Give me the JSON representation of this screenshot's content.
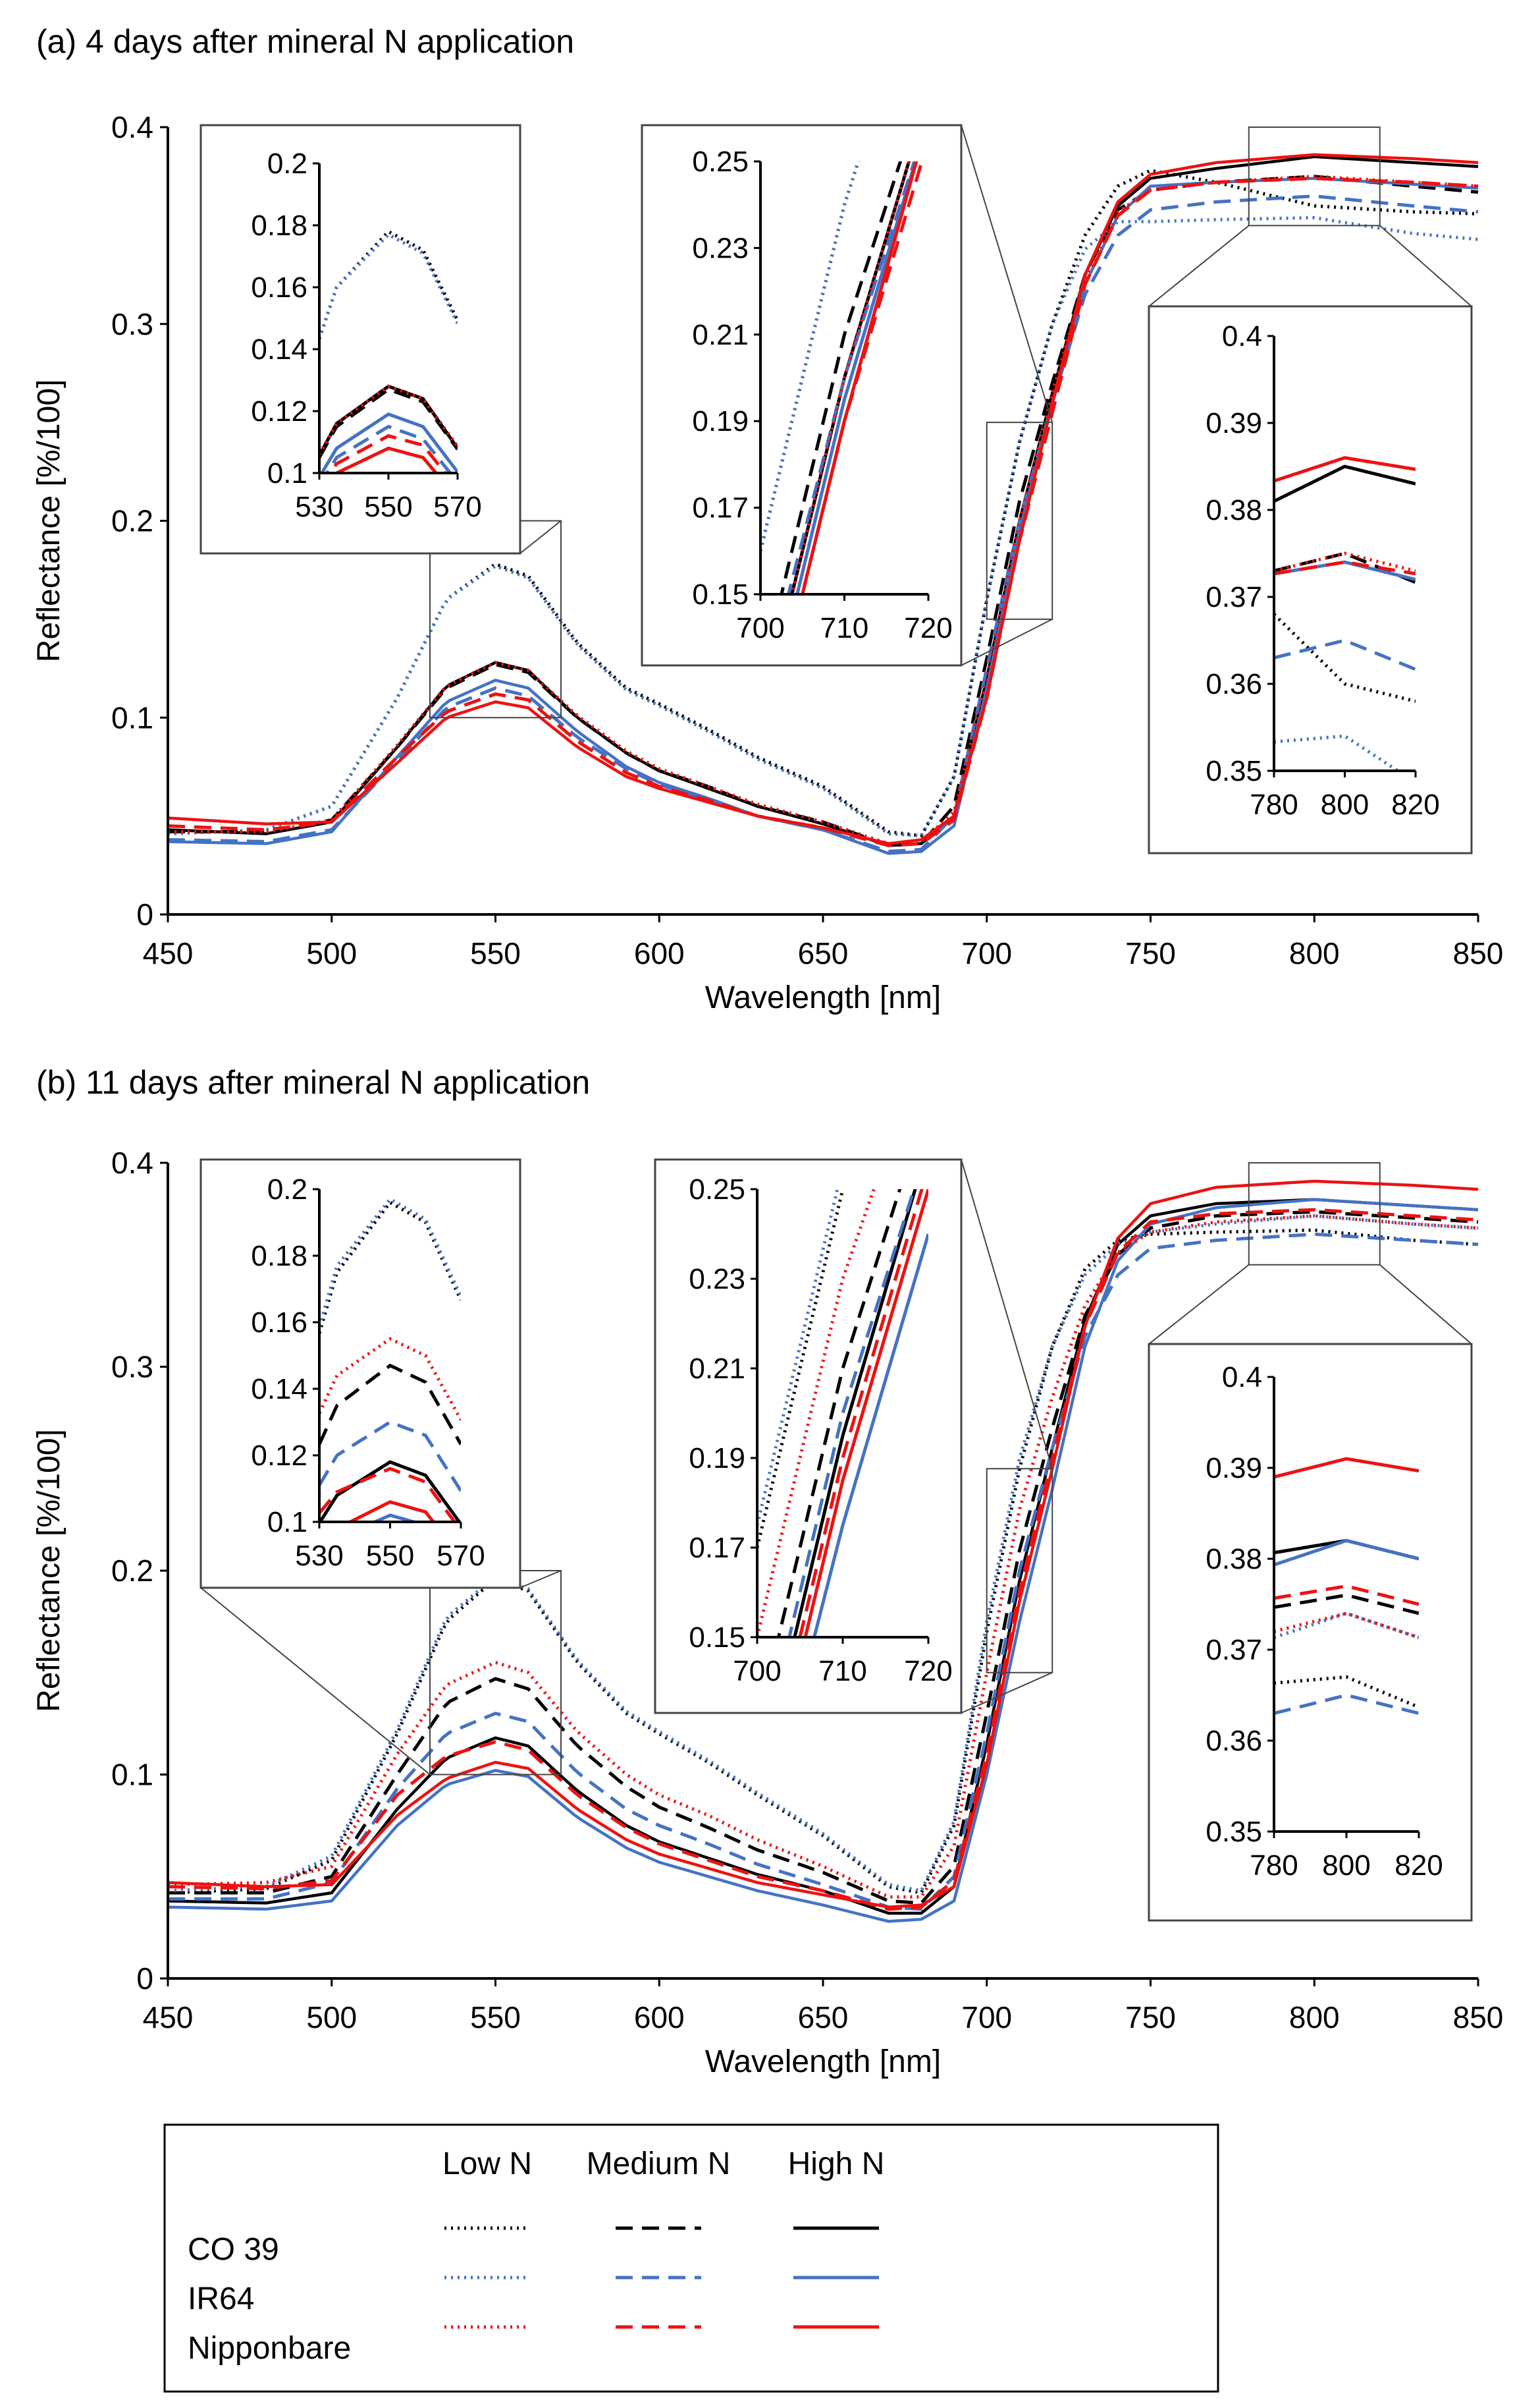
{
  "figure_labels": {
    "panel_a": "(a)   4 days after mineral N application",
    "panel_b": "(b)   11 days after mineral N application"
  },
  "colors": {
    "CO 39": "#000000",
    "IR64": "#4472C4",
    "Nipponbare": "#EE1111"
  },
  "legend": {
    "headers": [
      "Low N",
      "Medium N",
      "High N"
    ],
    "rows": [
      "CO 39",
      "IR64",
      "Nipponbare"
    ]
  },
  "chart_data": [
    {
      "type": "line",
      "panel": "a",
      "title": "4 days after mineral N application",
      "xlabel": "Wavelength [nm]",
      "ylabel": "Reflectance [%/100]",
      "xlim": [
        450,
        850
      ],
      "ylim": [
        0,
        0.4
      ],
      "xticks": [
        "450",
        "500",
        "550",
        "600",
        "650",
        "700",
        "750",
        "800",
        "850"
      ],
      "yticks": [
        "0",
        "0.1",
        "0.2",
        "0.3",
        "0.4"
      ],
      "x": [
        450,
        480,
        500,
        520,
        535,
        550,
        560,
        575,
        590,
        600,
        615,
        630,
        650,
        670,
        680,
        690,
        700,
        710,
        720,
        730,
        740,
        750,
        770,
        800,
        830,
        850
      ],
      "series": [
        {
          "name": "CO 39 Low N",
          "cultivar": "CO 39",
          "level": "Low N",
          "values": [
            0.041,
            0.043,
            0.055,
            0.11,
            0.16,
            0.178,
            0.172,
            0.138,
            0.115,
            0.107,
            0.094,
            0.08,
            0.065,
            0.042,
            0.04,
            0.07,
            0.16,
            0.24,
            0.3,
            0.345,
            0.37,
            0.378,
            0.372,
            0.36,
            0.357,
            0.356
          ]
        },
        {
          "name": "CO 39 Medium N",
          "cultivar": "CO 39",
          "level": "Medium N",
          "values": [
            0.042,
            0.042,
            0.048,
            0.085,
            0.115,
            0.127,
            0.123,
            0.1,
            0.082,
            0.073,
            0.065,
            0.055,
            0.047,
            0.035,
            0.036,
            0.055,
            0.13,
            0.21,
            0.27,
            0.325,
            0.358,
            0.368,
            0.372,
            0.375,
            0.37,
            0.367
          ]
        },
        {
          "name": "CO 39 High N",
          "cultivar": "CO 39",
          "level": "High N",
          "values": [
            0.043,
            0.041,
            0.047,
            0.085,
            0.116,
            0.128,
            0.124,
            0.1,
            0.082,
            0.073,
            0.064,
            0.055,
            0.046,
            0.035,
            0.036,
            0.05,
            0.12,
            0.2,
            0.265,
            0.325,
            0.36,
            0.374,
            0.379,
            0.385,
            0.382,
            0.38
          ]
        },
        {
          "name": "IR64 Low N",
          "cultivar": "IR64",
          "level": "Low N",
          "values": [
            0.041,
            0.043,
            0.055,
            0.11,
            0.16,
            0.177,
            0.171,
            0.137,
            0.114,
            0.106,
            0.093,
            0.079,
            0.064,
            0.041,
            0.04,
            0.07,
            0.16,
            0.24,
            0.3,
            0.338,
            0.352,
            0.352,
            0.353,
            0.354,
            0.346,
            0.343
          ]
        },
        {
          "name": "IR64 Medium N",
          "cultivar": "IR64",
          "level": "Medium N",
          "values": [
            0.038,
            0.037,
            0.043,
            0.078,
            0.105,
            0.115,
            0.111,
            0.09,
            0.074,
            0.066,
            0.058,
            0.05,
            0.043,
            0.032,
            0.033,
            0.05,
            0.125,
            0.2,
            0.26,
            0.315,
            0.345,
            0.358,
            0.362,
            0.365,
            0.36,
            0.357
          ]
        },
        {
          "name": "IR64 High N",
          "cultivar": "IR64",
          "level": "High N",
          "values": [
            0.037,
            0.036,
            0.042,
            0.08,
            0.108,
            0.119,
            0.115,
            0.093,
            0.075,
            0.067,
            0.059,
            0.05,
            0.043,
            0.031,
            0.032,
            0.045,
            0.115,
            0.195,
            0.26,
            0.32,
            0.355,
            0.37,
            0.372,
            0.374,
            0.371,
            0.369
          ]
        },
        {
          "name": "Nipponbare Low N",
          "cultivar": "Nipponbare",
          "level": "Low N",
          "values": [
            0.042,
            0.042,
            0.048,
            0.086,
            0.116,
            0.128,
            0.124,
            0.101,
            0.083,
            0.074,
            0.065,
            0.056,
            0.047,
            0.036,
            0.037,
            0.052,
            0.12,
            0.2,
            0.265,
            0.323,
            0.357,
            0.368,
            0.372,
            0.375,
            0.372,
            0.37
          ]
        },
        {
          "name": "Nipponbare Medium N",
          "cultivar": "Nipponbare",
          "level": "Medium N",
          "values": [
            0.045,
            0.043,
            0.047,
            0.08,
            0.103,
            0.112,
            0.109,
            0.088,
            0.072,
            0.065,
            0.058,
            0.05,
            0.044,
            0.035,
            0.036,
            0.048,
            0.11,
            0.19,
            0.255,
            0.32,
            0.355,
            0.368,
            0.372,
            0.374,
            0.372,
            0.37
          ]
        },
        {
          "name": "Nipponbare High N",
          "cultivar": "Nipponbare",
          "level": "High N",
          "values": [
            0.049,
            0.046,
            0.047,
            0.077,
            0.1,
            0.108,
            0.105,
            0.085,
            0.07,
            0.064,
            0.057,
            0.05,
            0.044,
            0.036,
            0.038,
            0.05,
            0.11,
            0.19,
            0.26,
            0.325,
            0.362,
            0.376,
            0.382,
            0.386,
            0.384,
            0.382
          ]
        }
      ],
      "insets": [
        {
          "name": "inset-green",
          "xlim": [
            530,
            570
          ],
          "ylim": [
            0.1,
            0.2
          ],
          "xticks": [
            "530",
            "550",
            "570"
          ],
          "yticks": [
            "0.1",
            "0.12",
            "0.14",
            "0.16",
            "0.18",
            "0.2"
          ]
        },
        {
          "name": "inset-rededge",
          "xlim": [
            700,
            720
          ],
          "ylim": [
            0.15,
            0.25
          ],
          "xticks": [
            "700",
            "710",
            "720"
          ],
          "yticks": [
            "0.15",
            "0.17",
            "0.19",
            "0.21",
            "0.23",
            "0.25"
          ]
        },
        {
          "name": "inset-nir",
          "xlim": [
            780,
            820
          ],
          "ylim": [
            0.35,
            0.4
          ],
          "xticks": [
            "780",
            "800",
            "820"
          ],
          "yticks": [
            "0.35",
            "0.36",
            "0.37",
            "0.38",
            "0.39",
            "0.4"
          ]
        }
      ]
    },
    {
      "type": "line",
      "panel": "b",
      "title": "11 days after mineral N application",
      "xlabel": "Wavelength [nm]",
      "ylabel": "Reflectance [%/100]",
      "xlim": [
        450,
        850
      ],
      "ylim": [
        0,
        0.4
      ],
      "xticks": [
        "450",
        "500",
        "550",
        "600",
        "650",
        "700",
        "750",
        "800",
        "850"
      ],
      "yticks": [
        "0",
        "0.1",
        "0.2",
        "0.3",
        "0.4"
      ],
      "x": [
        450,
        480,
        500,
        520,
        535,
        550,
        560,
        575,
        590,
        600,
        615,
        630,
        650,
        670,
        680,
        690,
        700,
        710,
        720,
        730,
        740,
        750,
        770,
        800,
        830,
        850
      ],
      "series": [
        {
          "name": "CO 39 Low N",
          "cultivar": "CO 39",
          "level": "Low N",
          "values": [
            0.042,
            0.044,
            0.058,
            0.12,
            0.175,
            0.196,
            0.19,
            0.155,
            0.13,
            0.12,
            0.106,
            0.09,
            0.07,
            0.045,
            0.042,
            0.075,
            0.17,
            0.25,
            0.31,
            0.348,
            0.362,
            0.365,
            0.366,
            0.367,
            0.362,
            0.36
          ]
        },
        {
          "name": "CO 39 Medium N",
          "cultivar": "CO 39",
          "level": "Medium N",
          "values": [
            0.042,
            0.042,
            0.05,
            0.1,
            0.135,
            0.147,
            0.142,
            0.114,
            0.094,
            0.084,
            0.074,
            0.063,
            0.052,
            0.038,
            0.037,
            0.055,
            0.13,
            0.21,
            0.27,
            0.325,
            0.355,
            0.368,
            0.374,
            0.376,
            0.373,
            0.371
          ]
        },
        {
          "name": "CO 39 High N",
          "cultivar": "CO 39",
          "level": "High N",
          "values": [
            0.038,
            0.037,
            0.042,
            0.083,
            0.108,
            0.118,
            0.114,
            0.092,
            0.075,
            0.067,
            0.059,
            0.051,
            0.043,
            0.032,
            0.032,
            0.045,
            0.115,
            0.195,
            0.26,
            0.323,
            0.36,
            0.374,
            0.38,
            0.382,
            0.379,
            0.377
          ]
        },
        {
          "name": "IR64 Low N",
          "cultivar": "IR64",
          "level": "Low N",
          "values": [
            0.043,
            0.045,
            0.06,
            0.122,
            0.177,
            0.197,
            0.191,
            0.156,
            0.131,
            0.121,
            0.107,
            0.091,
            0.071,
            0.046,
            0.043,
            0.077,
            0.175,
            0.255,
            0.31,
            0.345,
            0.36,
            0.366,
            0.37,
            0.374,
            0.37,
            0.368
          ]
        },
        {
          "name": "IR64 Medium N",
          "cultivar": "IR64",
          "level": "Medium N",
          "values": [
            0.039,
            0.039,
            0.047,
            0.093,
            0.12,
            0.13,
            0.126,
            0.101,
            0.083,
            0.075,
            0.066,
            0.056,
            0.046,
            0.035,
            0.034,
            0.05,
            0.12,
            0.2,
            0.26,
            0.315,
            0.345,
            0.358,
            0.362,
            0.365,
            0.362,
            0.36
          ]
        },
        {
          "name": "IR64 High N",
          "cultivar": "IR64",
          "level": "High N",
          "values": [
            0.035,
            0.034,
            0.038,
            0.075,
            0.095,
            0.102,
            0.099,
            0.079,
            0.064,
            0.057,
            0.05,
            0.043,
            0.036,
            0.028,
            0.029,
            0.038,
            0.1,
            0.175,
            0.24,
            0.31,
            0.352,
            0.37,
            0.378,
            0.382,
            0.379,
            0.377
          ]
        },
        {
          "name": "Nipponbare Low N",
          "cultivar": "Nipponbare",
          "level": "Low N",
          "values": [
            0.046,
            0.047,
            0.055,
            0.11,
            0.144,
            0.155,
            0.15,
            0.121,
            0.1,
            0.09,
            0.08,
            0.068,
            0.055,
            0.04,
            0.04,
            0.065,
            0.15,
            0.23,
            0.285,
            0.33,
            0.356,
            0.366,
            0.371,
            0.374,
            0.37,
            0.368
          ]
        },
        {
          "name": "Nipponbare Medium N",
          "cultivar": "Nipponbare",
          "level": "Medium N",
          "values": [
            0.045,
            0.044,
            0.048,
            0.09,
            0.109,
            0.116,
            0.112,
            0.09,
            0.074,
            0.066,
            0.058,
            0.05,
            0.043,
            0.034,
            0.035,
            0.048,
            0.11,
            0.19,
            0.255,
            0.32,
            0.356,
            0.371,
            0.375,
            0.377,
            0.374,
            0.372
          ]
        },
        {
          "name": "Nipponbare High N",
          "cultivar": "Nipponbare",
          "level": "High N",
          "values": [
            0.047,
            0.045,
            0.046,
            0.08,
            0.098,
            0.106,
            0.103,
            0.083,
            0.068,
            0.061,
            0.054,
            0.047,
            0.041,
            0.035,
            0.036,
            0.045,
            0.105,
            0.185,
            0.25,
            0.32,
            0.363,
            0.38,
            0.388,
            0.391,
            0.389,
            0.387
          ]
        }
      ],
      "insets": [
        {
          "name": "inset-green",
          "xlim": [
            530,
            570
          ],
          "ylim": [
            0.1,
            0.2
          ],
          "xticks": [
            "530",
            "550",
            "570"
          ],
          "yticks": [
            "0.1",
            "0.12",
            "0.14",
            "0.16",
            "0.18",
            "0.2"
          ]
        },
        {
          "name": "inset-rededge",
          "xlim": [
            700,
            720
          ],
          "ylim": [
            0.15,
            0.25
          ],
          "xticks": [
            "700",
            "710",
            "720"
          ],
          "yticks": [
            "0.15",
            "0.17",
            "0.19",
            "0.21",
            "0.23",
            "0.25"
          ]
        },
        {
          "name": "inset-nir",
          "xlim": [
            780,
            820
          ],
          "ylim": [
            0.35,
            0.4
          ],
          "xticks": [
            "780",
            "800",
            "820"
          ],
          "yticks": [
            "0.35",
            "0.36",
            "0.37",
            "0.38",
            "0.39",
            "0.4"
          ]
        }
      ]
    }
  ]
}
